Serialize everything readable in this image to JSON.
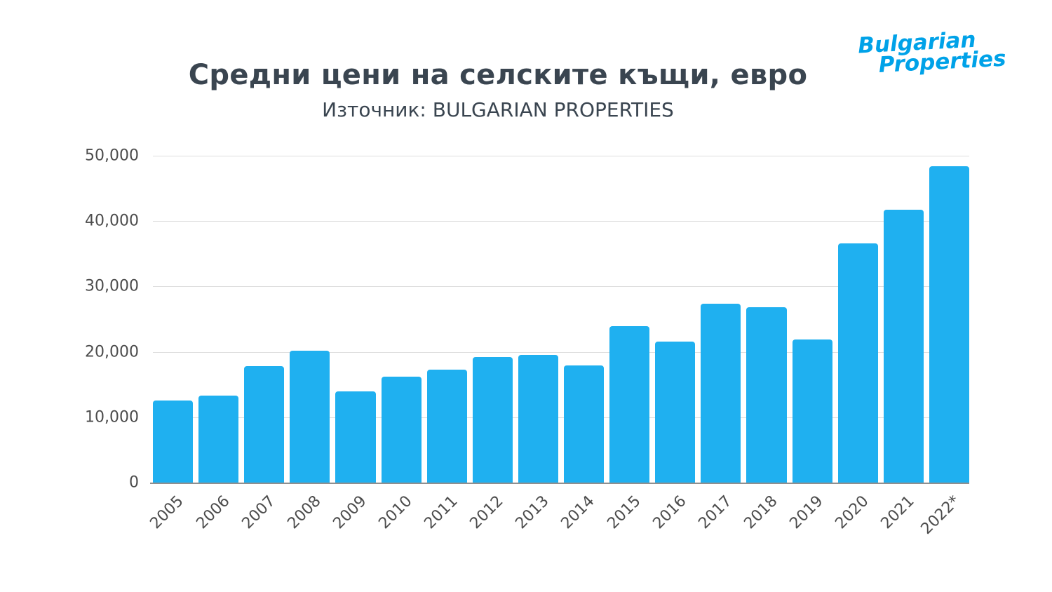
{
  "header": {
    "title": "Средни цени на селските къщи, евро",
    "subtitle": "Източник: BULGARIAN PROPERTIES"
  },
  "logo": {
    "line1": "Bulgarian",
    "line2": "Properties",
    "color": "#00a2e8"
  },
  "chart_data": {
    "type": "bar",
    "title": "Средни цени на селските къщи, евро",
    "subtitle": "Източник: BULGARIAN PROPERTIES",
    "xlabel": "",
    "ylabel": "",
    "categories": [
      "2005",
      "2006",
      "2007",
      "2008",
      "2009",
      "2010",
      "2011",
      "2012",
      "2013",
      "2014",
      "2015",
      "2016",
      "2017",
      "2018",
      "2019",
      "2020",
      "2021",
      "2022*"
    ],
    "values": [
      12600,
      13300,
      17800,
      20200,
      13900,
      16200,
      17300,
      19200,
      19500,
      17900,
      23900,
      21600,
      27400,
      26800,
      21900,
      36600,
      41700,
      48400
    ],
    "ylim": [
      0,
      50000
    ],
    "yticks": [
      0,
      10000,
      20000,
      30000,
      40000,
      50000
    ],
    "ytick_labels": [
      "0",
      "10,000",
      "20,000",
      "30,000",
      "40,000",
      "50,000"
    ],
    "grid": true,
    "legend": "none",
    "bar_color": "#1fb0f0"
  }
}
